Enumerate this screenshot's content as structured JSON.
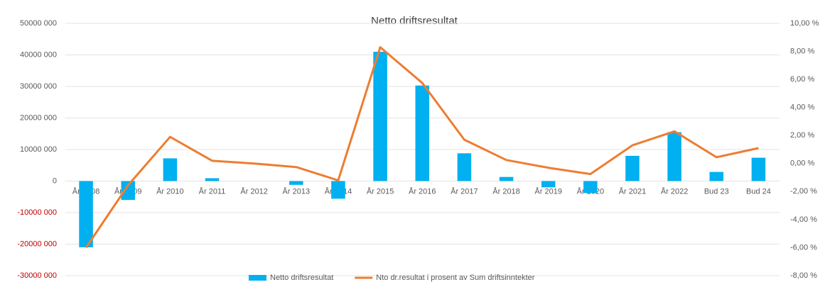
{
  "chart_data": {
    "type": "bar_line",
    "title": "Netto driftsresultat",
    "categories": [
      "År 2008",
      "År 2009",
      "År 2010",
      "År 2011",
      "År 2012",
      "År 2013",
      "År 2014",
      "År 2015",
      "År 2016",
      "År 2017",
      "År 2018",
      "År 2019",
      "År 2020",
      "År 2021",
      "År 2022",
      "Bud 23",
      "Bud 24"
    ],
    "series": [
      {
        "name": "Netto driftsresultat",
        "color": "#00b0f0",
        "kind": "bar",
        "values": [
          -21000000,
          -6000000,
          7200000,
          900000,
          0,
          -1200000,
          -5600000,
          41000000,
          30300000,
          8800000,
          1300000,
          -2000000,
          -3800000,
          8000000,
          15500000,
          2900000,
          7400000
        ]
      },
      {
        "name": "Nto dr.resultat i prosent av Sum driftsinntekter",
        "color": "#ed7d31",
        "kind": "line",
        "axis": "y2",
        "values": [
          -6.0,
          -1.55,
          1.9,
          0.2,
          0.0,
          -0.25,
          -1.2,
          8.3,
          5.75,
          1.7,
          0.25,
          -0.3,
          -0.75,
          1.3,
          2.3,
          0.45,
          1.1
        ]
      }
    ],
    "ylim": [
      -30000000,
      50000000
    ],
    "yticks": [
      {
        "value": -30000000,
        "label": "-30000 000"
      },
      {
        "value": -20000000,
        "label": "-20000 000"
      },
      {
        "value": -10000000,
        "label": "-10000 000"
      },
      0,
      {
        "value": 10000000,
        "label": "10000 000"
      },
      {
        "value": 20000000,
        "label": "20000 000"
      },
      {
        "value": 30000000,
        "label": "30000 000"
      },
      {
        "value": 40000000,
        "label": "40000 000"
      },
      {
        "value": 50000000,
        "label": "50000 000"
      }
    ],
    "y2lim": [
      -8,
      10
    ],
    "y2ticks": [
      {
        "value": -8,
        "label": "-8,00 %"
      },
      {
        "value": -6,
        "label": "-6,00 %"
      },
      {
        "value": -4,
        "label": "-4,00 %"
      },
      {
        "value": -2,
        "label": "-2,00 %"
      },
      {
        "value": 0,
        "label": "0,00 %"
      },
      {
        "value": 2,
        "label": "2,00 %"
      },
      {
        "value": 4,
        "label": "4,00 %"
      },
      {
        "value": 6,
        "label": "6,00 %"
      },
      {
        "value": 8,
        "label": "8,00 %"
      },
      {
        "value": 10,
        "label": "10,00 %"
      }
    ],
    "negative_tick_color": "#c00000",
    "grid": true,
    "legend": "bottom"
  }
}
